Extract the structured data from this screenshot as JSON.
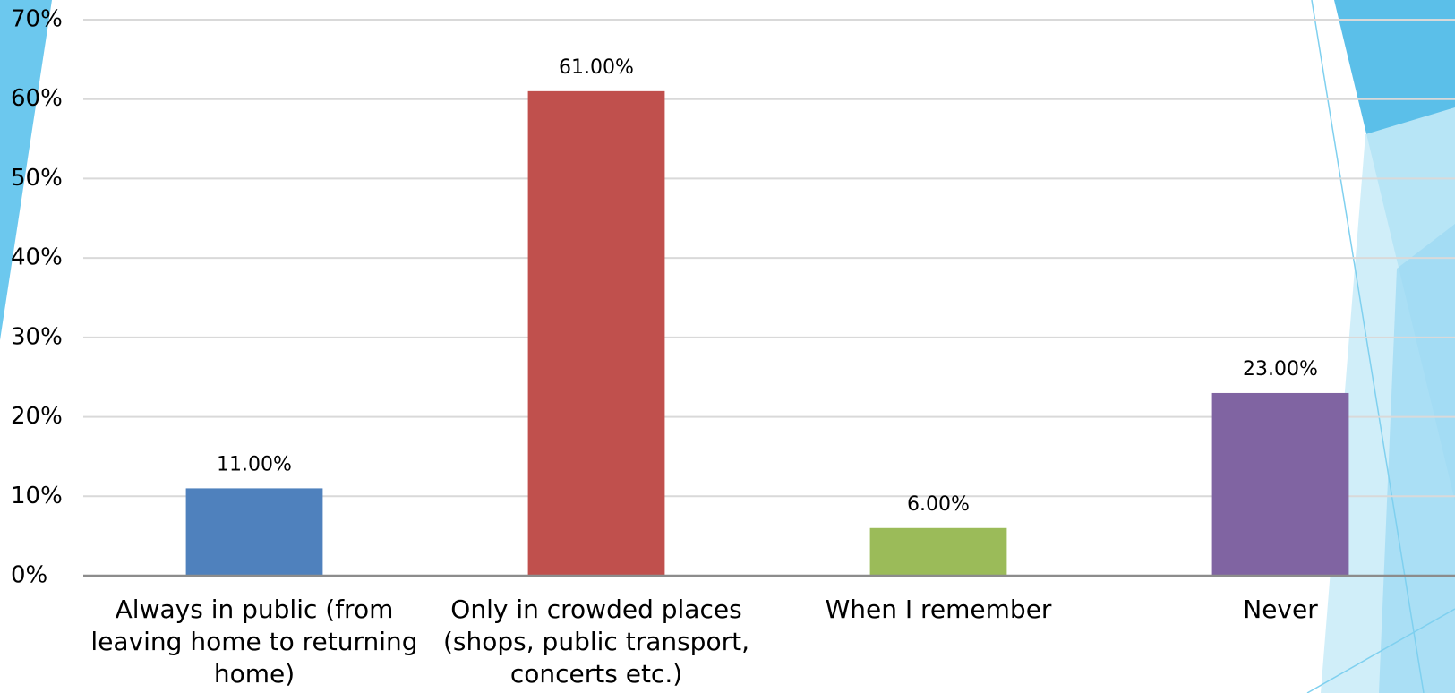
{
  "chart_data": {
    "type": "bar",
    "categories": [
      "Always in public (from leaving home to returning home)",
      "Only in crowded places (shops, public transport, concerts etc.)",
      "When I remember",
      "Never"
    ],
    "values": [
      11,
      61,
      6,
      23
    ],
    "value_labels": [
      "11.00%",
      "61.00%",
      "6.00%",
      "23.00%"
    ],
    "colors": [
      "#4f81bd",
      "#c0504d",
      "#9bbb59",
      "#8064a2"
    ],
    "ylim": [
      0,
      70
    ],
    "yticks": [
      {
        "value": 0,
        "label": "0%"
      },
      {
        "value": 10,
        "label": "10%"
      },
      {
        "value": 20,
        "label": "20%"
      },
      {
        "value": 30,
        "label": "30%"
      },
      {
        "value": 40,
        "label": "40%"
      },
      {
        "value": 50,
        "label": "50%"
      },
      {
        "value": 60,
        "label": "60%"
      },
      {
        "value": 70,
        "label": "70%"
      }
    ],
    "grid": true
  }
}
